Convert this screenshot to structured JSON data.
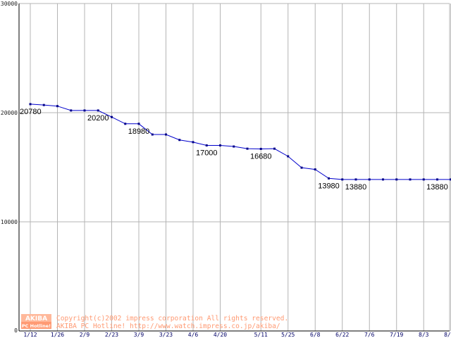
{
  "chart_data": {
    "type": "line",
    "x": [
      "1/12",
      "1/19",
      "1/26",
      "2/2",
      "2/9",
      "2/16",
      "2/23",
      "3/2",
      "3/9",
      "3/16",
      "3/23",
      "3/30",
      "4/6",
      "4/13",
      "4/20",
      "4/27",
      "5/4",
      "5/11",
      "5/18",
      "5/25",
      "6/1",
      "6/8",
      "6/15",
      "6/22",
      "6/29",
      "7/6",
      "7/13",
      "7/19",
      "7/27",
      "8/3",
      "8/10",
      "8/16"
    ],
    "series": [
      {
        "values": [
          20780,
          20700,
          20600,
          20200,
          20200,
          20200,
          19600,
          18980,
          18980,
          18000,
          18000,
          17500,
          17300,
          17000,
          17000,
          16900,
          16700,
          16680,
          16700,
          16000,
          14960,
          14800,
          13980,
          13880,
          13880,
          13880,
          13880,
          13880,
          13880,
          13880,
          13880,
          13880
        ]
      }
    ],
    "x_tick_labels": [
      "1/12",
      "1/26",
      "2/9",
      "2/23",
      "3/9",
      "3/23",
      "4/6",
      "4/20",
      "5/11",
      "5/25",
      "6/8",
      "6/22",
      "7/6",
      "7/19",
      "8/3",
      "8/16"
    ],
    "y_tick_labels": [
      "0",
      "10000",
      "20000",
      "30000"
    ],
    "ylim": [
      0,
      30000
    ],
    "grid": true,
    "data_labels": [
      {
        "index": 0,
        "text": "20780"
      },
      {
        "index": 5,
        "text": "20200"
      },
      {
        "index": 8,
        "text": "18980"
      },
      {
        "index": 13,
        "text": "17000"
      },
      {
        "index": 17,
        "text": "16680"
      },
      {
        "index": 22,
        "text": "13980"
      },
      {
        "index": 24,
        "text": "13880"
      },
      {
        "index": 31,
        "text": "13880"
      }
    ],
    "colors": {
      "line": "#0000cc",
      "marker": "#000088",
      "grid": "#b4b4b4",
      "axis": "#000000"
    }
  },
  "footer": {
    "copyright": "Copyright(c)2002 impress corporation All rights reserved.",
    "site_line": "AKIBA PC Hotline! http://www.watch.impress.co.jp/akiba/",
    "logo_top": "AKIBA",
    "logo_bottom": "PC Hotline!"
  }
}
